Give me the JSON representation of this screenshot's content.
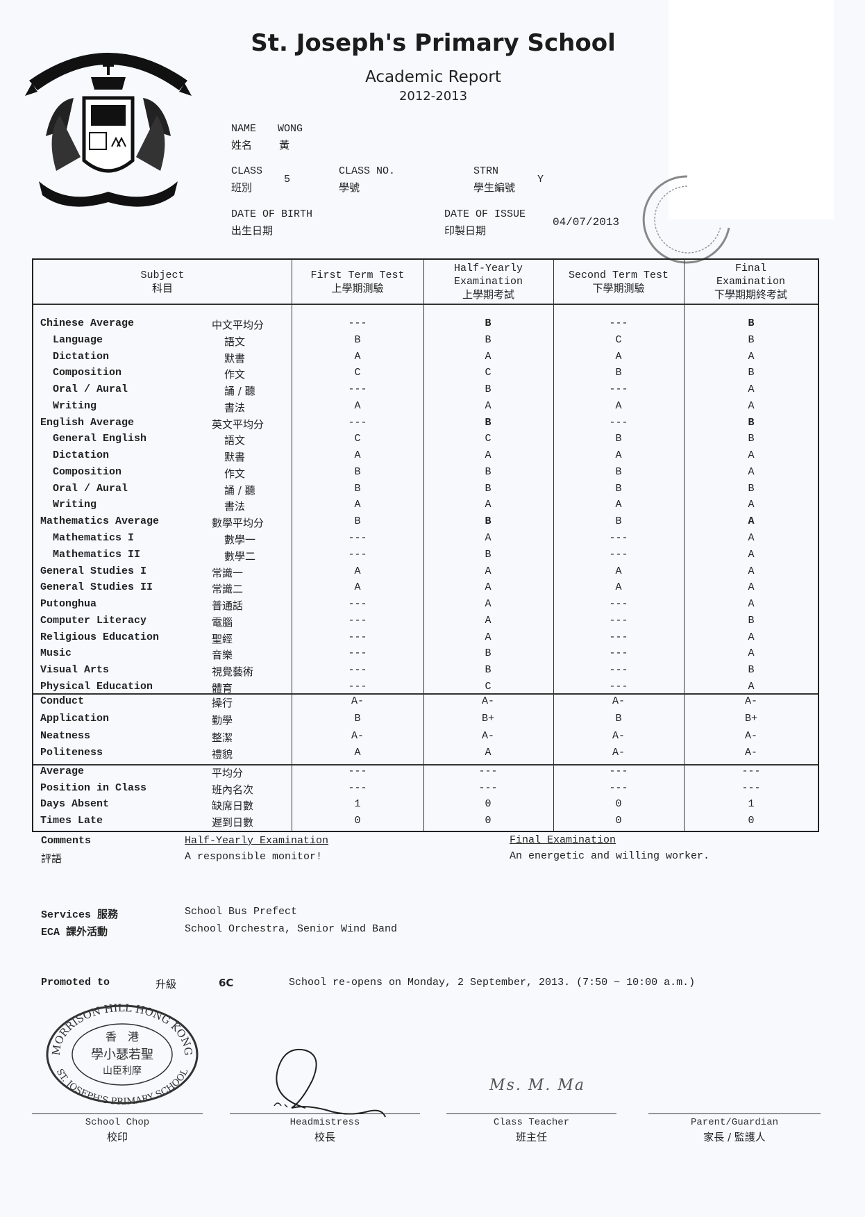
{
  "header": {
    "school": "St. Joseph's Primary School",
    "report": "Academic Report",
    "year": "2012-2013"
  },
  "student": {
    "name_label": "NAME",
    "name_label_zh": "姓名",
    "name_en": "WONG",
    "name_zh": "黃",
    "class_label": "CLASS",
    "class_label_zh": "班別",
    "class_value": "5",
    "class_no_label": "CLASS NO.",
    "class_no_label_zh": "學號",
    "strn_label": "STRN",
    "strn_label_zh": "學生編號",
    "strn_value": "Y",
    "dob_label": "DATE OF BIRTH",
    "dob_label_zh": "出生日期",
    "issue_label": "DATE OF ISSUE",
    "issue_label_zh": "印製日期",
    "issue_value": "04/07/2013"
  },
  "table": {
    "headers": [
      {
        "en": "Subject",
        "en2": "",
        "zh": "科目"
      },
      {
        "en": "First Term Test",
        "en2": "",
        "zh": "上學期測驗"
      },
      {
        "en": "Half-Yearly",
        "en2": "Examination",
        "zh": "上學期考試"
      },
      {
        "en": "Second Term Test",
        "en2": "",
        "zh": "下學期測驗"
      },
      {
        "en": "Final",
        "en2": "Examination",
        "zh": "下學期期終考試"
      }
    ],
    "subjects": [
      {
        "en": "Chinese Average",
        "zh": "中文平均分",
        "indent": false,
        "bold": true,
        "grades": [
          "---",
          "B",
          "---",
          "B"
        ]
      },
      {
        "en": "Language",
        "zh": "語文",
        "indent": true,
        "grades": [
          "B",
          "B",
          "C",
          "B"
        ]
      },
      {
        "en": "Dictation",
        "zh": "默書",
        "indent": true,
        "grades": [
          "A",
          "A",
          "A",
          "A"
        ]
      },
      {
        "en": "Composition",
        "zh": "作文",
        "indent": true,
        "grades": [
          "C",
          "C",
          "B",
          "B"
        ]
      },
      {
        "en": "Oral / Aural",
        "zh": "誦 / 聽",
        "indent": true,
        "grades": [
          "---",
          "B",
          "---",
          "A"
        ]
      },
      {
        "en": "Writing",
        "zh": "書法",
        "indent": true,
        "grades": [
          "A",
          "A",
          "A",
          "A"
        ]
      },
      {
        "en": "English Average",
        "zh": "英文平均分",
        "indent": false,
        "bold": true,
        "grades": [
          "---",
          "B",
          "---",
          "B"
        ]
      },
      {
        "en": "General English",
        "zh": "語文",
        "indent": true,
        "grades": [
          "C",
          "C",
          "B",
          "B"
        ]
      },
      {
        "en": "Dictation",
        "zh": "默書",
        "indent": true,
        "grades": [
          "A",
          "A",
          "A",
          "A"
        ]
      },
      {
        "en": "Composition",
        "zh": "作文",
        "indent": true,
        "grades": [
          "B",
          "B",
          "B",
          "A"
        ]
      },
      {
        "en": "Oral / Aural",
        "zh": "誦 / 聽",
        "indent": true,
        "grades": [
          "B",
          "B",
          "B",
          "B"
        ]
      },
      {
        "en": "Writing",
        "zh": "書法",
        "indent": true,
        "grades": [
          "A",
          "A",
          "A",
          "A"
        ]
      },
      {
        "en": "Mathematics Average",
        "zh": "數學平均分",
        "indent": false,
        "bold": true,
        "grades": [
          "B",
          "B",
          "B",
          "A"
        ]
      },
      {
        "en": "Mathematics I",
        "zh": "數學一",
        "indent": true,
        "grades": [
          "---",
          "A",
          "---",
          "A"
        ]
      },
      {
        "en": "Mathematics II",
        "zh": "數學二",
        "indent": true,
        "grades": [
          "---",
          "B",
          "---",
          "A"
        ]
      },
      {
        "en": "General Studies I",
        "zh": "常識一",
        "indent": false,
        "grades": [
          "A",
          "A",
          "A",
          "A"
        ]
      },
      {
        "en": "General Studies II",
        "zh": "常識二",
        "indent": false,
        "grades": [
          "A",
          "A",
          "A",
          "A"
        ]
      },
      {
        "en": "Putonghua",
        "zh": "普通話",
        "indent": false,
        "grades": [
          "---",
          "A",
          "---",
          "A"
        ]
      },
      {
        "en": "Computer Literacy",
        "zh": "電腦",
        "indent": false,
        "grades": [
          "---",
          "A",
          "---",
          "B"
        ]
      },
      {
        "en": "Religious Education",
        "zh": "聖經",
        "indent": false,
        "grades": [
          "---",
          "A",
          "---",
          "A"
        ]
      },
      {
        "en": "Music",
        "zh": "音樂",
        "indent": false,
        "grades": [
          "---",
          "B",
          "---",
          "A"
        ]
      },
      {
        "en": "Visual Arts",
        "zh": "視覺藝術",
        "indent": false,
        "grades": [
          "---",
          "B",
          "---",
          "B"
        ]
      },
      {
        "en": "Physical Education",
        "zh": "體育",
        "indent": false,
        "grades": [
          "---",
          "C",
          "---",
          "A"
        ]
      }
    ],
    "conduct": [
      {
        "en": "Conduct",
        "zh": "操行",
        "grades": [
          "A-",
          "A-",
          "A-",
          "A-"
        ]
      },
      {
        "en": "Application",
        "zh": "勤學",
        "grades": [
          "B",
          "B+",
          "B",
          "B+"
        ]
      },
      {
        "en": "Neatness",
        "zh": "整潔",
        "grades": [
          "A-",
          "A-",
          "A-",
          "A-"
        ]
      },
      {
        "en": "Politeness",
        "zh": "禮貌",
        "grades": [
          "A",
          "A",
          "A-",
          "A-"
        ]
      }
    ],
    "summary": [
      {
        "en": "Average",
        "zh": "平均分",
        "grades": [
          "---",
          "---",
          "---",
          "---"
        ]
      },
      {
        "en": "Position in Class",
        "zh": "班內名次",
        "grades": [
          "---",
          "---",
          "---",
          "---"
        ]
      },
      {
        "en": "Days Absent",
        "zh": "缺席日數",
        "grades": [
          "1",
          "0",
          "0",
          "1"
        ]
      },
      {
        "en": "Times Late",
        "zh": "遲到日數",
        "grades": [
          "0",
          "0",
          "0",
          "0"
        ]
      }
    ]
  },
  "comments": {
    "label": "Comments",
    "label_zh": "評語",
    "half_heading": "Half-Yearly Examination",
    "half_text": "A responsible monitor!",
    "final_heading": "Final Examination",
    "final_text": "An energetic and willing worker."
  },
  "services": {
    "label": "Services 服務",
    "value": "School Bus Prefect"
  },
  "eca": {
    "label": "ECA 課外活動",
    "value": "School Orchestra, Senior Wind Band"
  },
  "promotion": {
    "label": "Promoted to",
    "label_zh": "升級",
    "value": "6C",
    "reopen": "School re-opens on Monday, 2 September, 2013. (7:50 ~ 10:00 a.m.)"
  },
  "chop": {
    "top": "MORRISON HILL HONG KONG",
    "line1": "香　港",
    "line2": "學小瑟若聖",
    "line3": "山臣利摩",
    "bottom": "ST. JOSEPH'S PRIMARY SCHOOL"
  },
  "teacher_signature": "Ms. M. Ma",
  "signatures": [
    {
      "en": "School Chop",
      "zh": "校印"
    },
    {
      "en": "Headmistress",
      "zh": "校長"
    },
    {
      "en": "Class Teacher",
      "zh": "班主任"
    },
    {
      "en": "Parent/Guardian",
      "zh": "家長 / 監護人"
    }
  ]
}
